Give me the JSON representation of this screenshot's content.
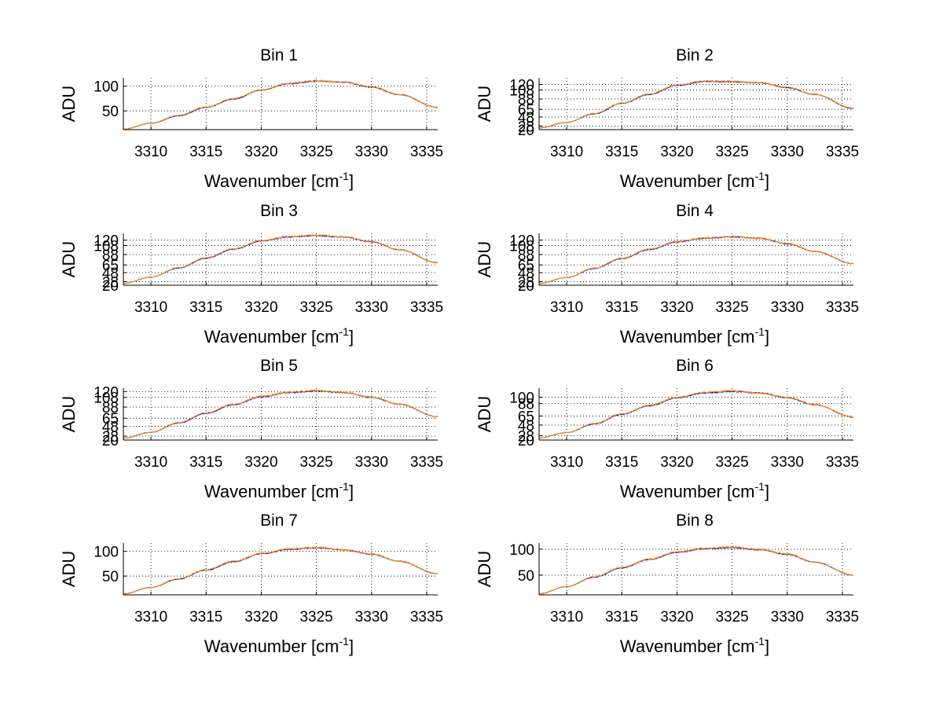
{
  "chart_data": [
    {
      "type": "line",
      "title": "Bin 1",
      "xlabel": "Wavenumber [cm",
      "xlabel_sup": "-1",
      "xlabel_end": "]",
      "ylabel": "ADU",
      "xlim": [
        3307.5,
        3336
      ],
      "ylim": [
        12,
        117
      ],
      "xticks": [
        3310,
        3315,
        3320,
        3325,
        3330,
        3335
      ],
      "yticks": [
        50,
        100
      ],
      "grid": true,
      "series": [
        {
          "color": "#0000ff",
          "x": [
            3307.5,
            3310,
            3312.5,
            3315,
            3317.5,
            3320,
            3322.5,
            3325,
            3327.5,
            3330,
            3332.5,
            3336
          ],
          "y": [
            13,
            25,
            40,
            57,
            74,
            92,
            105,
            110,
            108,
            98,
            83,
            57
          ]
        },
        {
          "color": "#ff8c00",
          "x": [
            3307.5,
            3310,
            3312.5,
            3315,
            3317.5,
            3320,
            3322.5,
            3325,
            3327.5,
            3330,
            3332.5,
            3336
          ],
          "y": [
            13,
            25,
            41,
            58,
            75,
            92,
            106,
            111,
            108,
            99,
            83,
            57
          ]
        }
      ]
    },
    {
      "type": "line",
      "title": "Bin 2",
      "xlabel": "Wavenumber [cm",
      "xlabel_sup": "-1",
      "xlabel_end": "]",
      "ylabel": "ADU",
      "xlim": [
        3307.5,
        3336
      ],
      "ylim": [
        20,
        135
      ],
      "xticks": [
        3310,
        3315,
        3320,
        3325,
        3330,
        3335
      ],
      "yticks": [
        20,
        28,
        48,
        65,
        88,
        108,
        120
      ],
      "grid": true,
      "series": [
        {
          "color": "#0000ff",
          "x": [
            3307.5,
            3310,
            3312.5,
            3315,
            3317.5,
            3320,
            3322.5,
            3325,
            3327.5,
            3330,
            3332.5,
            3336
          ],
          "y": [
            24,
            36,
            55,
            78,
            98,
            118,
            127,
            126,
            124,
            113,
            98,
            67
          ]
        },
        {
          "color": "#ff8c00",
          "x": [
            3307.5,
            3310,
            3312.5,
            3315,
            3317.5,
            3320,
            3322.5,
            3325,
            3327.5,
            3330,
            3332.5,
            3336
          ],
          "y": [
            24,
            36,
            56,
            79,
            99,
            119,
            128,
            127,
            124,
            114,
            98,
            68
          ]
        }
      ]
    },
    {
      "type": "line",
      "title": "Bin 3",
      "xlabel": "Wavenumber [cm",
      "xlabel_sup": "-1",
      "xlabel_end": "]",
      "ylabel": "ADU",
      "xlim": [
        3307.5,
        3336
      ],
      "ylim": [
        20,
        135
      ],
      "xticks": [
        3310,
        3315,
        3320,
        3325,
        3330,
        3335
      ],
      "yticks": [
        20,
        28,
        48,
        65,
        88,
        108,
        120
      ],
      "grid": true,
      "series": [
        {
          "color": "#0000ff",
          "x": [
            3307.5,
            3310,
            3312.5,
            3315,
            3317.5,
            3320,
            3322.5,
            3325,
            3327.5,
            3330,
            3332.5,
            3336
          ],
          "y": [
            24,
            38,
            58,
            80,
            100,
            118,
            127,
            130,
            127,
            116,
            99,
            70
          ]
        },
        {
          "color": "#ff8c00",
          "x": [
            3307.5,
            3310,
            3312.5,
            3315,
            3317.5,
            3320,
            3322.5,
            3325,
            3327.5,
            3330,
            3332.5,
            3336
          ],
          "y": [
            24,
            38,
            59,
            81,
            101,
            119,
            128,
            131,
            127,
            117,
            99,
            70
          ]
        }
      ]
    },
    {
      "type": "line",
      "title": "Bin 4",
      "xlabel": "Wavenumber [cm",
      "xlabel_sup": "-1",
      "xlabel_end": "]",
      "ylabel": "ADU",
      "xlim": [
        3307.5,
        3336
      ],
      "ylim": [
        20,
        135
      ],
      "xticks": [
        3310,
        3315,
        3320,
        3325,
        3330,
        3335
      ],
      "yticks": [
        20,
        28,
        48,
        65,
        88,
        108,
        120
      ],
      "grid": true,
      "series": [
        {
          "color": "#0000ff",
          "x": [
            3307.5,
            3310,
            3312.5,
            3315,
            3317.5,
            3320,
            3322.5,
            3325,
            3327.5,
            3330,
            3332.5,
            3336
          ],
          "y": [
            24,
            37,
            57,
            79,
            99,
            116,
            124,
            127,
            124,
            112,
            95,
            68
          ]
        },
        {
          "color": "#ff8c00",
          "x": [
            3307.5,
            3310,
            3312.5,
            3315,
            3317.5,
            3320,
            3322.5,
            3325,
            3327.5,
            3330,
            3332.5,
            3336
          ],
          "y": [
            24,
            37,
            58,
            80,
            100,
            117,
            125,
            128,
            124,
            113,
            95,
            68
          ]
        }
      ]
    },
    {
      "type": "line",
      "title": "Bin 5",
      "xlabel": "Wavenumber [cm",
      "xlabel_sup": "-1",
      "xlabel_end": "]",
      "ylabel": "ADU",
      "xlim": [
        3307.5,
        3336
      ],
      "ylim": [
        20,
        127
      ],
      "xticks": [
        3310,
        3315,
        3320,
        3325,
        3330,
        3335
      ],
      "yticks": [
        20,
        28,
        48,
        65,
        88,
        108,
        120
      ],
      "grid": true,
      "series": [
        {
          "color": "#0000ff",
          "x": [
            3307.5,
            3310,
            3312.5,
            3315,
            3317.5,
            3320,
            3322.5,
            3325,
            3327.5,
            3330,
            3332.5,
            3336
          ],
          "y": [
            24,
            36,
            55,
            75,
            93,
            109,
            118,
            121,
            118,
            108,
            94,
            68
          ]
        },
        {
          "color": "#ff8c00",
          "x": [
            3307.5,
            3310,
            3312.5,
            3315,
            3317.5,
            3320,
            3322.5,
            3325,
            3327.5,
            3330,
            3332.5,
            3336
          ],
          "y": [
            24,
            36,
            56,
            76,
            94,
            110,
            119,
            122,
            118,
            109,
            94,
            68
          ]
        }
      ]
    },
    {
      "type": "line",
      "title": "Bin 6",
      "xlabel": "Wavenumber [cm",
      "xlabel_sup": "-1",
      "xlabel_end": "]",
      "ylabel": "ADU",
      "xlim": [
        3307.5,
        3336
      ],
      "ylim": [
        20,
        117
      ],
      "xticks": [
        3310,
        3315,
        3320,
        3325,
        3330,
        3335
      ],
      "yticks": [
        20,
        28,
        48,
        65,
        88,
        100
      ],
      "grid": true,
      "series": [
        {
          "color": "#0000ff",
          "x": [
            3307.5,
            3310,
            3312.5,
            3315,
            3317.5,
            3320,
            3322.5,
            3325,
            3327.5,
            3330,
            3332.5,
            3336
          ],
          "y": [
            24,
            34,
            50,
            68,
            84,
            99,
            108,
            111,
            108,
            99,
            86,
            63
          ]
        },
        {
          "color": "#ff8c00",
          "x": [
            3307.5,
            3310,
            3312.5,
            3315,
            3317.5,
            3320,
            3322.5,
            3325,
            3327.5,
            3330,
            3332.5,
            3336
          ],
          "y": [
            24,
            34,
            51,
            69,
            85,
            100,
            109,
            112,
            108,
            100,
            86,
            63
          ]
        }
      ]
    },
    {
      "type": "line",
      "title": "Bin 7",
      "xlabel": "Wavenumber [cm",
      "xlabel_sup": "-1",
      "xlabel_end": "]",
      "ylabel": "ADU",
      "xlim": [
        3307.5,
        3336
      ],
      "ylim": [
        12,
        117
      ],
      "xticks": [
        3310,
        3315,
        3320,
        3325,
        3330,
        3335
      ],
      "yticks": [
        50,
        100
      ],
      "grid": true,
      "series": [
        {
          "color": "#0000ff",
          "x": [
            3307.5,
            3310,
            3312.5,
            3315,
            3317.5,
            3320,
            3322.5,
            3325,
            3327.5,
            3330,
            3332.5,
            3336
          ],
          "y": [
            14,
            27,
            44,
            62,
            79,
            95,
            104,
            107,
            103,
            94,
            80,
            55
          ]
        },
        {
          "color": "#ff8c00",
          "x": [
            3307.5,
            3310,
            3312.5,
            3315,
            3317.5,
            3320,
            3322.5,
            3325,
            3327.5,
            3330,
            3332.5,
            3336
          ],
          "y": [
            14,
            27,
            45,
            63,
            80,
            96,
            105,
            108,
            103,
            95,
            80,
            55
          ]
        }
      ]
    },
    {
      "type": "line",
      "title": "Bin 8",
      "xlabel": "Wavenumber [cm",
      "xlabel_sup": "-1",
      "xlabel_end": "]",
      "ylabel": "ADU",
      "xlim": [
        3307.5,
        3336
      ],
      "ylim": [
        12,
        112
      ],
      "xticks": [
        3310,
        3315,
        3320,
        3325,
        3330,
        3335
      ],
      "yticks": [
        50,
        100
      ],
      "grid": true,
      "series": [
        {
          "color": "#0000ff",
          "x": [
            3307.5,
            3310,
            3312.5,
            3315,
            3317.5,
            3320,
            3322.5,
            3325,
            3327.5,
            3330,
            3332.5,
            3336
          ],
          "y": [
            14,
            28,
            46,
            64,
            80,
            94,
            101,
            103,
            99,
            90,
            75,
            50
          ]
        },
        {
          "color": "#ff8c00",
          "x": [
            3307.5,
            3310,
            3312.5,
            3315,
            3317.5,
            3320,
            3322.5,
            3325,
            3327.5,
            3330,
            3332.5,
            3336
          ],
          "y": [
            14,
            28,
            47,
            65,
            81,
            95,
            102,
            104,
            99,
            91,
            75,
            50
          ]
        }
      ]
    }
  ]
}
